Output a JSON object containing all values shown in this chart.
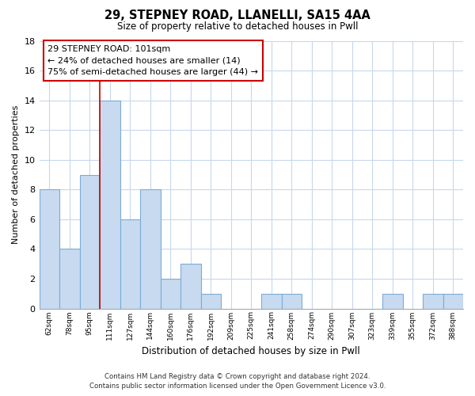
{
  "title1": "29, STEPNEY ROAD, LLANELLI, SA15 4AA",
  "title2": "Size of property relative to detached houses in Pwll",
  "xlabel": "Distribution of detached houses by size in Pwll",
  "ylabel": "Number of detached properties",
  "bin_labels": [
    "62sqm",
    "78sqm",
    "95sqm",
    "111sqm",
    "127sqm",
    "144sqm",
    "160sqm",
    "176sqm",
    "192sqm",
    "209sqm",
    "225sqm",
    "241sqm",
    "258sqm",
    "274sqm",
    "290sqm",
    "307sqm",
    "323sqm",
    "339sqm",
    "355sqm",
    "372sqm",
    "388sqm"
  ],
  "bar_values": [
    8,
    4,
    9,
    14,
    6,
    8,
    2,
    3,
    1,
    0,
    0,
    1,
    1,
    0,
    0,
    0,
    0,
    1,
    0,
    1,
    1
  ],
  "bar_color": "#c8daf0",
  "bar_edge_color": "#7aadd4",
  "grid_color": "#c8d8ec",
  "vline_color": "#cc0000",
  "annotation_title": "29 STEPNEY ROAD: 101sqm",
  "annotation_line1": "← 24% of detached houses are smaller (14)",
  "annotation_line2": "75% of semi-detached houses are larger (44) →",
  "annotation_box_color": "#ffffff",
  "annotation_box_edge": "#cc0000",
  "footer1": "Contains HM Land Registry data © Crown copyright and database right 2024.",
  "footer2": "Contains public sector information licensed under the Open Government Licence v3.0.",
  "ylim": [
    0,
    18
  ],
  "yticks": [
    0,
    2,
    4,
    6,
    8,
    10,
    12,
    14,
    16,
    18
  ],
  "vline_pos": 3.0
}
